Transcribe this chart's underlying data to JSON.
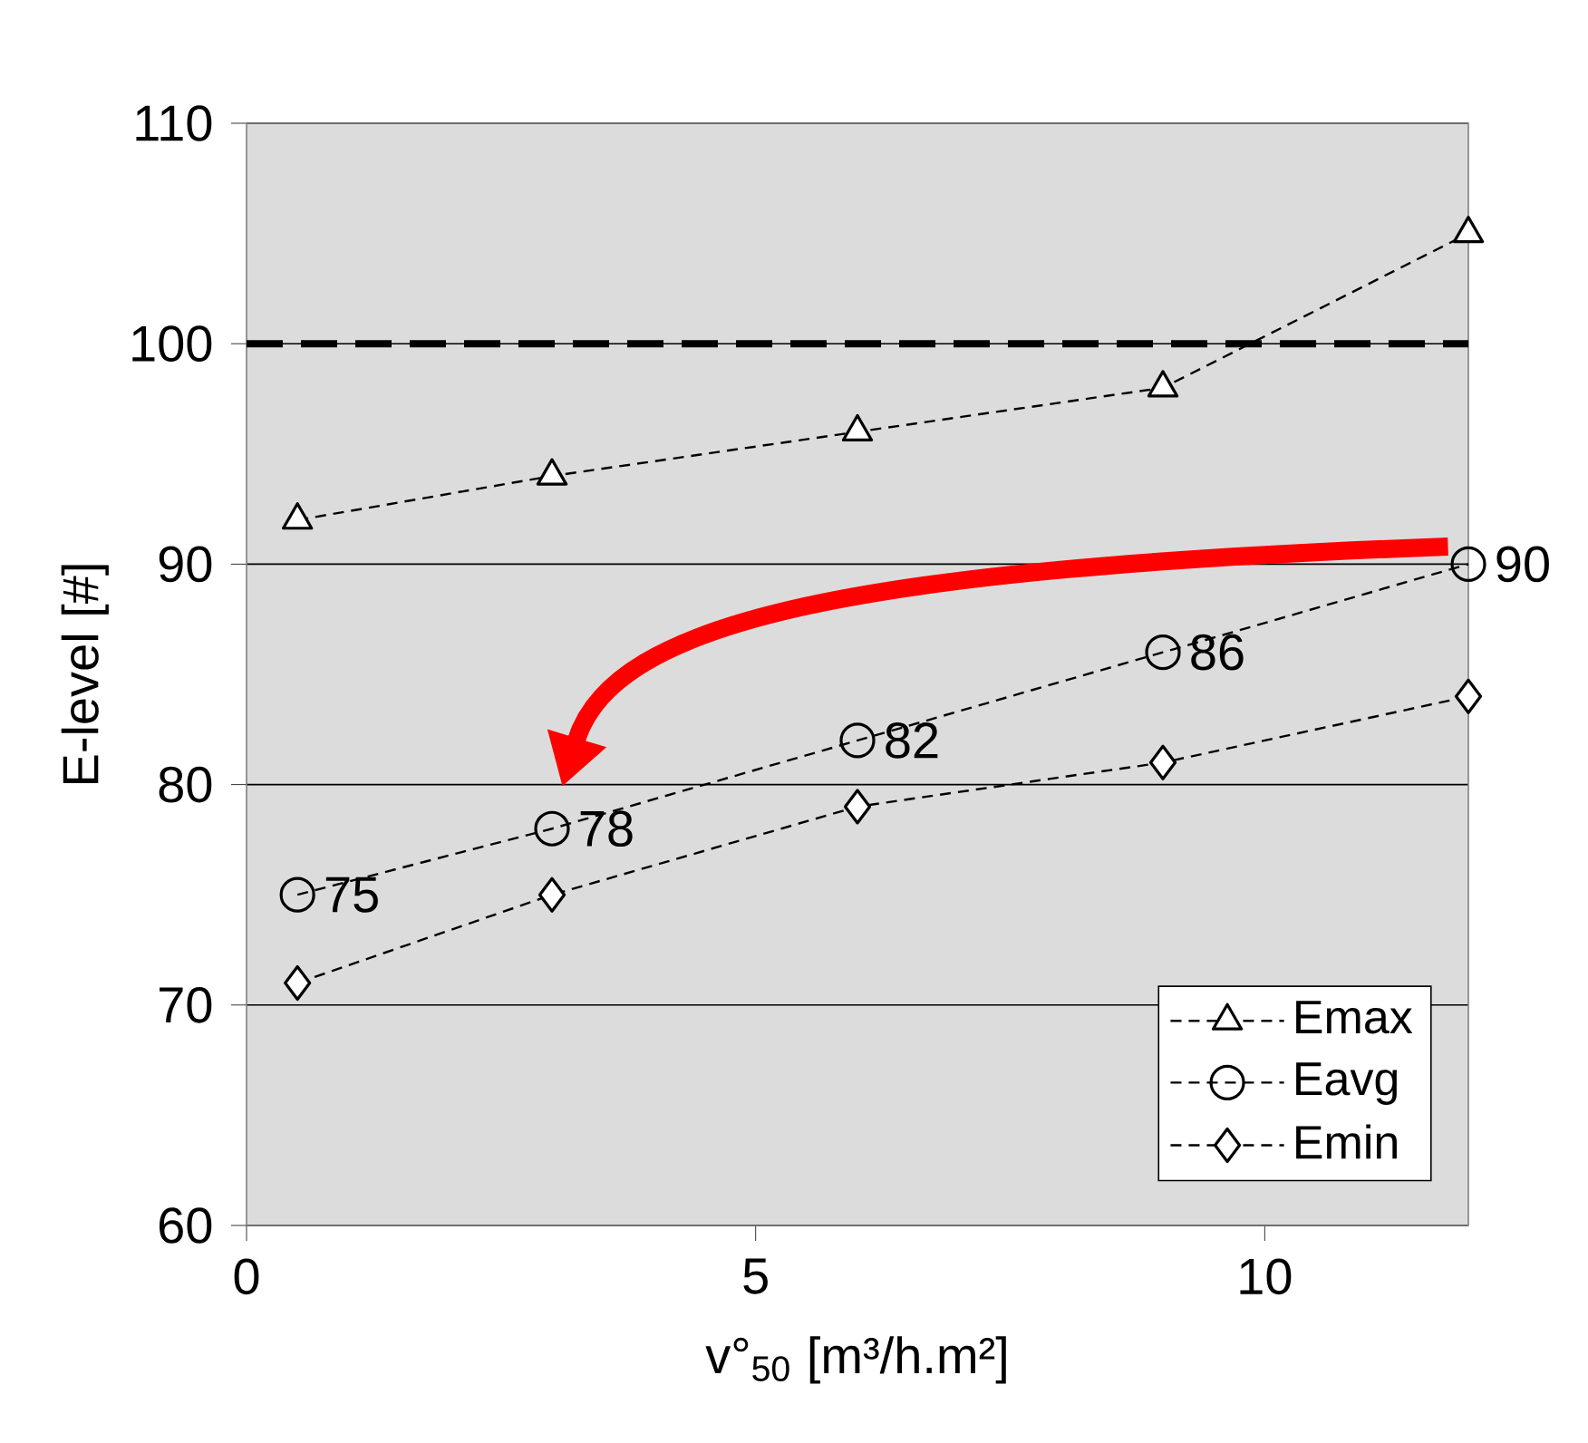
{
  "chart_data": {
    "type": "line",
    "xlabel": "v°$_{50}$ [m³/h.m²]",
    "ylabel": "E-level [#]",
    "x": [
      0.5,
      3,
      6,
      9,
      12
    ],
    "xlim": [
      0,
      12
    ],
    "ylim": [
      60,
      110
    ],
    "xticks": [
      0,
      5,
      10
    ],
    "yticks": [
      60,
      70,
      80,
      90,
      100,
      110
    ],
    "grid": "y",
    "legend": "bottom right",
    "line_style": "dashed",
    "ref_lines": [
      {
        "axis": "y",
        "value": 100,
        "color": "#000000",
        "line_style": "dashed"
      }
    ],
    "series": [
      {
        "name": "Emax",
        "color": "#000000",
        "marker": "triangle",
        "values": [
          92,
          94,
          96,
          98,
          105
        ]
      },
      {
        "name": "Eavg",
        "color": "#000000",
        "marker": "circle",
        "values": [
          75,
          78,
          82,
          86,
          90
        ],
        "value_labels": [
          "75",
          "78",
          "82",
          "86",
          "90"
        ]
      },
      {
        "name": "Emin",
        "color": "#000000",
        "marker": "diamond",
        "values": [
          71,
          75,
          79,
          81,
          84
        ]
      }
    ]
  }
}
